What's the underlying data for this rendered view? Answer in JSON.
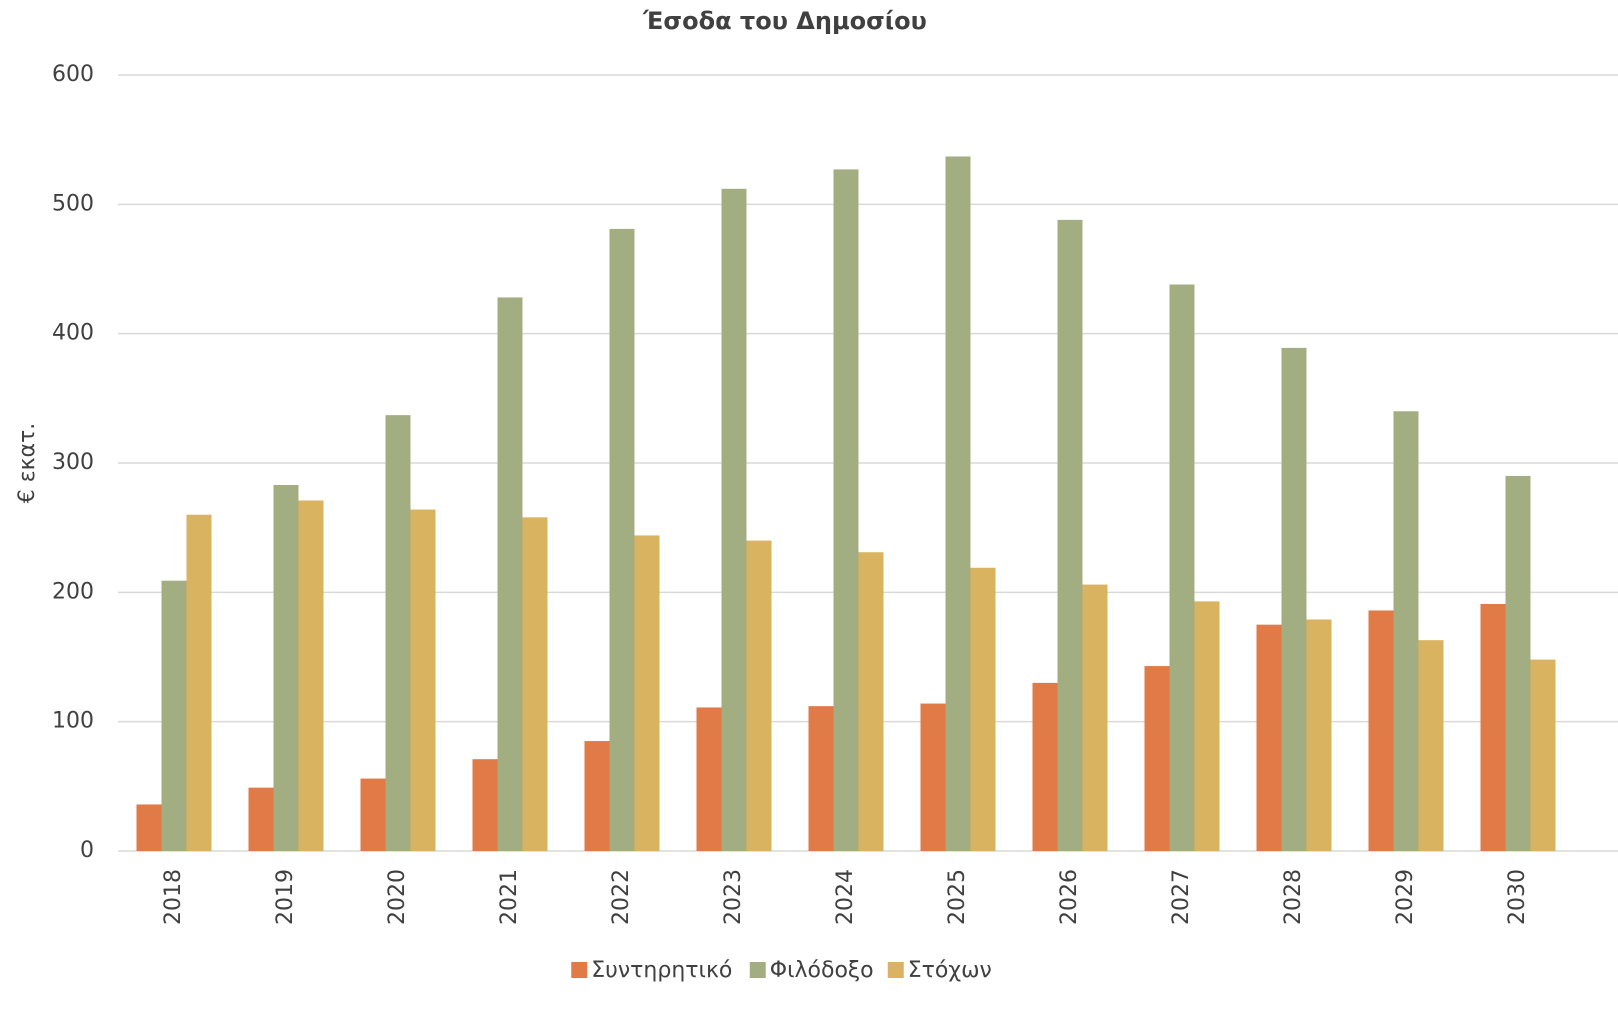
{
  "chart_data": {
    "type": "bar",
    "title": "Έσοδα του Δημοσίου",
    "y_label": "€ εκατ.",
    "categories": [
      "2018",
      "2019",
      "2020",
      "2021",
      "2022",
      "2023",
      "2024",
      "2025",
      "2026",
      "2027",
      "2028",
      "2029",
      "2030"
    ],
    "series": [
      {
        "name": "Συντηρητικό",
        "color": "#e07b47",
        "values": [
          36,
          49,
          56,
          71,
          85,
          111,
          112,
          114,
          130,
          143,
          175,
          186,
          191
        ]
      },
      {
        "name": "Φιλόδοξο",
        "color": "#a3ad82",
        "values": [
          209,
          283,
          337,
          428,
          481,
          512,
          527,
          537,
          488,
          438,
          389,
          340,
          290
        ]
      },
      {
        "name": "Στόχων",
        "color": "#d9b35f",
        "values": [
          260,
          271,
          264,
          258,
          244,
          240,
          231,
          219,
          206,
          193,
          179,
          163,
          148
        ]
      }
    ],
    "ylim": [
      0,
      600
    ],
    "yticks": [
      0,
      100,
      200,
      300,
      400,
      500,
      600
    ],
    "grid": true,
    "legend": "bottom"
  }
}
